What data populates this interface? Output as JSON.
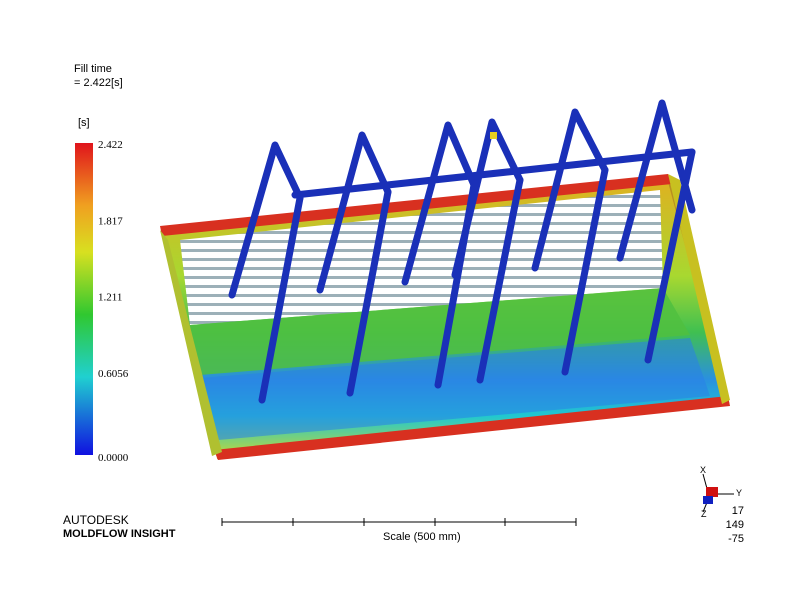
{
  "result": {
    "name": "Fill time",
    "value": "= 2.422[s]"
  },
  "legend": {
    "unit": "[s]",
    "ticks": [
      "2.422",
      "1.817",
      "1.211",
      "0.6056",
      "0.0000"
    ]
  },
  "brand": {
    "company": "AUTODESK",
    "product": "MOLDFLOW INSIGHT"
  },
  "scale": {
    "label": "Scale (500 mm)"
  },
  "triad": {
    "axes": [
      "X",
      "Y",
      "Z"
    ],
    "angles": [
      "17",
      "149",
      "-75"
    ]
  }
}
